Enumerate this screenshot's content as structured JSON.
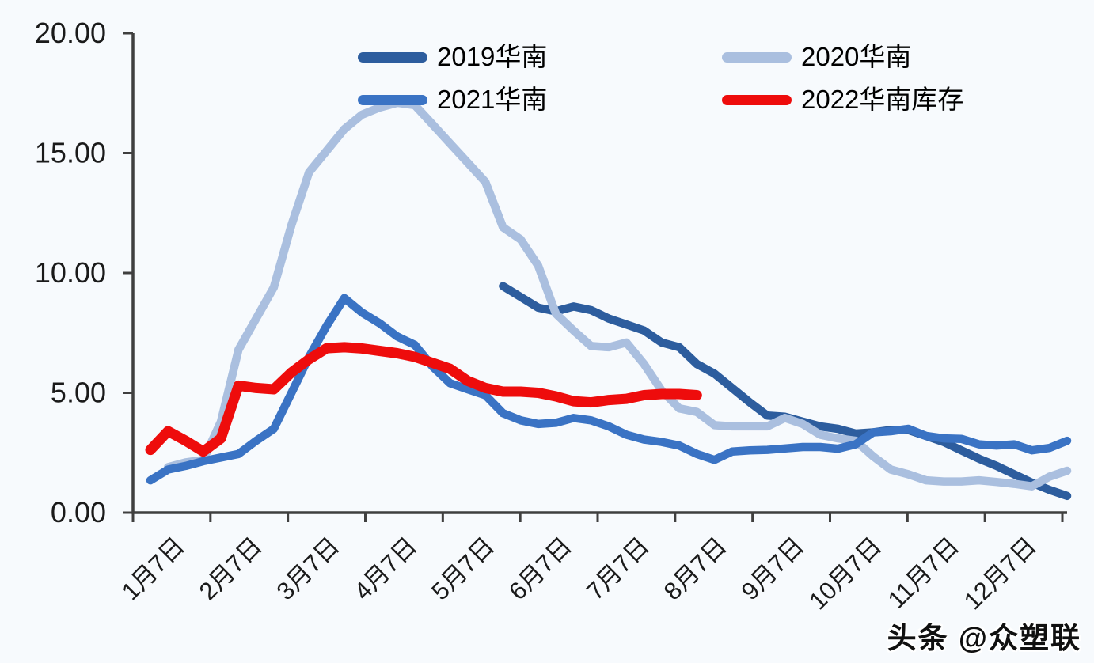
{
  "page": {
    "background": "#f7fafd"
  },
  "watermark": {
    "text": "头条 @众塑联"
  },
  "chart_data": {
    "type": "line",
    "title": "",
    "x_axis": {
      "tick_labels": [
        "1月7日",
        "2月7日",
        "3月7日",
        "4月7日",
        "5月7日",
        "6月7日",
        "7月7日",
        "8月7日",
        "9月7日",
        "10月7日",
        "11月7日",
        "12月7日"
      ],
      "unit": "weekly observations, Jan 7 - Dec 7",
      "weeks_total": 53
    },
    "y_axis": {
      "tick_labels": [
        "0.00",
        "5.00",
        "10.00",
        "15.00",
        "20.00"
      ],
      "min": 0,
      "max": 20
    },
    "grid": "off",
    "legend_position": "top",
    "axis_color": "#3f3f3f",
    "series": [
      {
        "name": "2019华南",
        "color": "#2d5d9e",
        "line_width": 10.5,
        "start_week": 20,
        "values": [
          9.45,
          9.0,
          8.55,
          8.4,
          8.6,
          8.45,
          8.1,
          7.85,
          7.6,
          7.1,
          6.9,
          6.2,
          5.8,
          5.2,
          4.6,
          4.05,
          4.0,
          3.8,
          3.6,
          3.5,
          3.3,
          3.35,
          3.45,
          3.45,
          3.2,
          2.95,
          2.6,
          2.25,
          1.95,
          1.6,
          1.25,
          0.95,
          0.7
        ]
      },
      {
        "name": "2020华南",
        "color": "#aabfdf",
        "line_width": 10.5,
        "start_week": 1,
        "values": [
          1.9,
          2.1,
          2.2,
          3.8,
          6.8,
          8.1,
          9.4,
          12.0,
          14.2,
          15.1,
          16.0,
          16.6,
          16.9,
          17.1,
          17.0,
          16.2,
          15.4,
          14.6,
          13.8,
          11.9,
          11.4,
          10.3,
          8.3,
          7.6,
          6.95,
          6.9,
          7.1,
          6.2,
          5.1,
          4.35,
          4.2,
          3.65,
          3.6,
          3.6,
          3.6,
          3.95,
          3.7,
          3.25,
          3.1,
          3.0,
          2.35,
          1.8,
          1.6,
          1.35,
          1.3,
          1.3,
          1.35,
          1.28,
          1.2,
          1.1,
          1.5,
          1.75
        ]
      },
      {
        "name": "2021华南",
        "color": "#3a73c4",
        "line_width": 10.5,
        "start_week": 0,
        "values": [
          1.35,
          1.8,
          1.95,
          2.15,
          2.3,
          2.45,
          3.0,
          3.5,
          5.0,
          6.5,
          7.8,
          8.95,
          8.35,
          7.9,
          7.35,
          7.0,
          6.1,
          5.4,
          5.15,
          4.9,
          4.15,
          3.85,
          3.7,
          3.75,
          3.95,
          3.85,
          3.6,
          3.25,
          3.05,
          2.95,
          2.8,
          2.45,
          2.2,
          2.55,
          2.6,
          2.62,
          2.68,
          2.74,
          2.74,
          2.67,
          2.85,
          3.35,
          3.4,
          3.5,
          3.2,
          3.1,
          3.08,
          2.85,
          2.8,
          2.85,
          2.6,
          2.7,
          3.0
        ]
      },
      {
        "name": "2022华南库存",
        "color": "#ee0c0c",
        "line_width": 13,
        "start_week": 0,
        "values": [
          2.62,
          3.4,
          3.0,
          2.55,
          3.1,
          5.3,
          5.2,
          5.15,
          5.85,
          6.4,
          6.86,
          6.9,
          6.85,
          6.75,
          6.65,
          6.5,
          6.25,
          6.0,
          5.5,
          5.2,
          5.05,
          5.05,
          5.0,
          4.85,
          4.65,
          4.6,
          4.7,
          4.75,
          4.9,
          4.95,
          4.95,
          4.9
        ]
      }
    ]
  }
}
